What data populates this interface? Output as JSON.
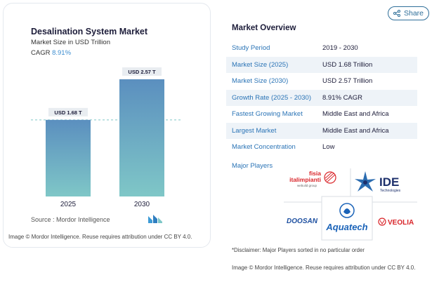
{
  "header": {
    "share_label": "Share"
  },
  "chart_card": {
    "title": "Desalination System Market",
    "subtitle": "Market Size in USD Trillion",
    "cagr_label": "CAGR",
    "cagr_value": "8.91%",
    "source": "Source :  Mordor Intelligence",
    "credit": "Image © Mordor Intelligence. Reuse requires attribution under CC BY 4.0."
  },
  "chart_data": {
    "type": "bar",
    "title": "Desalination System Market",
    "subtitle": "Market Size in USD Trillion",
    "categories": [
      "2025",
      "2030"
    ],
    "values": [
      1.68,
      2.57
    ],
    "data_labels": [
      "USD 1.68 T",
      "USD 2.57 T"
    ],
    "ylim": [
      0,
      2.57
    ],
    "grid": false,
    "reference_line": 1.68,
    "colors": {
      "bar_top": "#5b8fbf",
      "bar_bottom": "#7fc7c7",
      "label_bg": "#e9edf1",
      "ref_line": "#7fc7c7"
    }
  },
  "overview": {
    "title": "Market Overview",
    "rows": [
      {
        "label": "Study Period",
        "value": "2019 - 2030"
      },
      {
        "label": "Market Size (2025)",
        "value": "USD 1.68 Trillion"
      },
      {
        "label": "Market Size (2030)",
        "value": "USD 2.57 Trillion"
      },
      {
        "label": "Growth Rate (2025 - 2030)",
        "value": "8.91% CAGR"
      },
      {
        "label": "Fastest Growing Market",
        "value": "Middle East and Africa"
      },
      {
        "label": "Largest Market",
        "value": "Middle East and Africa"
      },
      {
        "label": "Market Concentration",
        "value": "Low"
      }
    ],
    "major_players_label": "Major Players",
    "players": [
      {
        "name": "fisia italimpianti",
        "sub": "webuild group",
        "color": "#d9252a"
      },
      {
        "name": "IDE",
        "sub": "Technologies",
        "color": "#1c2f6b"
      },
      {
        "name": "DOOSAN",
        "color": "#1d4fa0"
      },
      {
        "name": "Aquatech",
        "color": "#1b63b8"
      },
      {
        "name": "VEOLIA",
        "color": "#d9252a"
      }
    ],
    "disclaimer": "*Disclaimer: Major Players sorted in no particular order",
    "credit": "Image © Mordor Intelligence. Reuse requires attribution under CC BY 4.0."
  }
}
